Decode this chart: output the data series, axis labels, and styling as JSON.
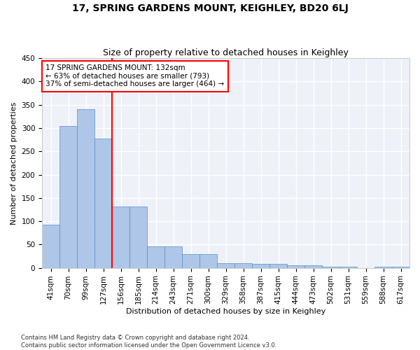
{
  "title": "17, SPRING GARDENS MOUNT, KEIGHLEY, BD20 6LJ",
  "subtitle": "Size of property relative to detached houses in Keighley",
  "xlabel": "Distribution of detached houses by size in Keighley",
  "ylabel": "Number of detached properties",
  "footnote1": "Contains HM Land Registry data © Crown copyright and database right 2024.",
  "footnote2": "Contains public sector information licensed under the Open Government Licence v3.0.",
  "categories": [
    "41sqm",
    "70sqm",
    "99sqm",
    "127sqm",
    "156sqm",
    "185sqm",
    "214sqm",
    "243sqm",
    "271sqm",
    "300sqm",
    "329sqm",
    "358sqm",
    "387sqm",
    "415sqm",
    "444sqm",
    "473sqm",
    "502sqm",
    "531sqm",
    "559sqm",
    "588sqm",
    "617sqm"
  ],
  "values": [
    93,
    304,
    340,
    278,
    131,
    131,
    46,
    46,
    30,
    30,
    10,
    10,
    8,
    8,
    5,
    5,
    2,
    2,
    0,
    3,
    3
  ],
  "bar_color": "#aec6e8",
  "bar_edge_color": "#5a8fc2",
  "vline_x": 3.5,
  "annotation_line1": "17 SPRING GARDENS MOUNT: 132sqm",
  "annotation_line2": "← 63% of detached houses are smaller (793)",
  "annotation_line3": "37% of semi-detached houses are larger (464) →",
  "ylim": [
    0,
    450
  ],
  "yticks": [
    0,
    50,
    100,
    150,
    200,
    250,
    300,
    350,
    400,
    450
  ],
  "background_color": "#eef2f8",
  "grid_color": "white",
  "title_fontsize": 10,
  "subtitle_fontsize": 9,
  "annot_fontsize": 7.5,
  "axis_label_fontsize": 8,
  "tick_fontsize": 7.5
}
